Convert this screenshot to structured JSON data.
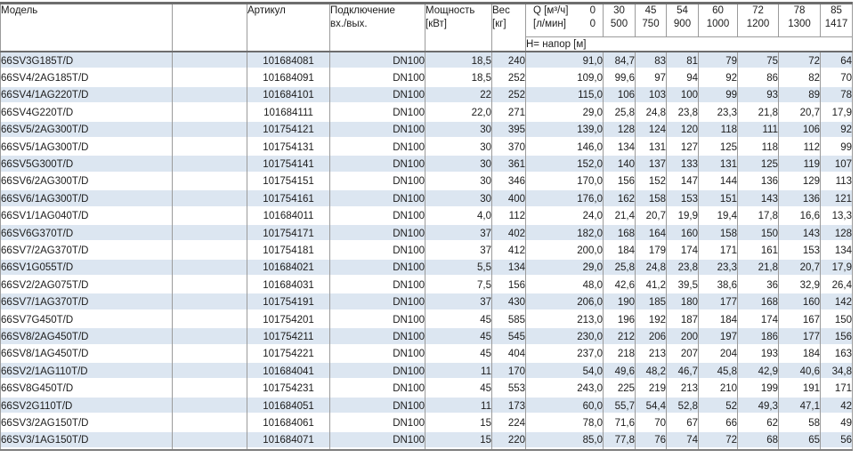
{
  "table": {
    "headers": {
      "model": "Модель",
      "empty_column": "",
      "article": "Артикул",
      "connection_l1": "Подключение",
      "connection_l2": "вх./вых.",
      "power_l1": "Мощность",
      "power_l2": "[кВт]",
      "weight_l1": "Вес",
      "weight_l2": "[кг]",
      "q_label_l1": "Q [м³/ч]",
      "q_zero_l1": "0",
      "q_label_l2": "[л/мин]",
      "q_zero_l2": "0",
      "head_row_label": "Н= напор [м]",
      "flow_columns": [
        {
          "m3h": "30",
          "lmin": "500"
        },
        {
          "m3h": "45",
          "lmin": "750"
        },
        {
          "m3h": "54",
          "lmin": "900"
        },
        {
          "m3h": "60",
          "lmin": "1000"
        },
        {
          "m3h": "72",
          "lmin": "1200"
        },
        {
          "m3h": "78",
          "lmin": "1300"
        },
        {
          "m3h": "85",
          "lmin": "1417"
        }
      ]
    },
    "rows": [
      {
        "model": "66SV3G185T/D",
        "article": "101684081",
        "connection": "DN100",
        "power": "18,5",
        "weight": "240",
        "h": [
          "91,0",
          "84,7",
          "83",
          "81",
          "79",
          "75",
          "72",
          "64"
        ]
      },
      {
        "model": "66SV4/2AG185T/D",
        "article": "101684091",
        "connection": "DN100",
        "power": "18,5",
        "weight": "252",
        "h": [
          "109,0",
          "99,6",
          "97",
          "94",
          "92",
          "86",
          "82",
          "70"
        ]
      },
      {
        "model": "66SV4/1AG220T/D",
        "article": "101684101",
        "connection": "DN100",
        "power": "22",
        "weight": "252",
        "h": [
          "115,0",
          "106",
          "103",
          "100",
          "99",
          "93",
          "89",
          "78"
        ]
      },
      {
        "model": "66SV4G220T/D",
        "article": "101684111",
        "connection": "DN100",
        "power": "22,0",
        "weight": "271",
        "h": [
          "29,0",
          "25,8",
          "24,8",
          "23,8",
          "23,3",
          "21,8",
          "20,7",
          "17,9"
        ]
      },
      {
        "model": "66SV5/2AG300T/D",
        "article": "101754121",
        "connection": "DN100",
        "power": "30",
        "weight": "395",
        "h": [
          "139,0",
          "128",
          "124",
          "120",
          "118",
          "111",
          "106",
          "92"
        ]
      },
      {
        "model": "66SV5/1AG300T/D",
        "article": "101754131",
        "connection": "DN100",
        "power": "30",
        "weight": "370",
        "h": [
          "146,0",
          "134",
          "131",
          "127",
          "125",
          "118",
          "112",
          "99"
        ]
      },
      {
        "model": "66SV5G300T/D",
        "article": "101754141",
        "connection": "DN100",
        "power": "30",
        "weight": "361",
        "h": [
          "152,0",
          "140",
          "137",
          "133",
          "131",
          "125",
          "119",
          "107"
        ]
      },
      {
        "model": "66SV6/2AG300T/D",
        "article": "101754151",
        "connection": "DN100",
        "power": "30",
        "weight": "346",
        "h": [
          "170,0",
          "156",
          "152",
          "147",
          "144",
          "136",
          "129",
          "113"
        ]
      },
      {
        "model": "66SV6/1AG300T/D",
        "article": "101754161",
        "connection": "DN100",
        "power": "30",
        "weight": "400",
        "h": [
          "176,0",
          "162",
          "158",
          "153",
          "151",
          "143",
          "136",
          "121"
        ]
      },
      {
        "model": "66SV1/1AG040T/D",
        "article": "101684011",
        "connection": "DN100",
        "power": "4,0",
        "weight": "112",
        "h": [
          "24,0",
          "21,4",
          "20,7",
          "19,9",
          "19,4",
          "17,8",
          "16,6",
          "13,3"
        ]
      },
      {
        "model": "66SV6G370T/D",
        "article": "101754171",
        "connection": "DN100",
        "power": "37",
        "weight": "402",
        "h": [
          "182,0",
          "168",
          "164",
          "160",
          "158",
          "150",
          "143",
          "128"
        ]
      },
      {
        "model": "66SV7/2AG370T/D",
        "article": "101754181",
        "connection": "DN100",
        "power": "37",
        "weight": "412",
        "h": [
          "200,0",
          "184",
          "179",
          "174",
          "171",
          "161",
          "153",
          "134"
        ]
      },
      {
        "model": "66SV1G055T/D",
        "article": "101684021",
        "connection": "DN100",
        "power": "5,5",
        "weight": "134",
        "h": [
          "29,0",
          "25,8",
          "24,8",
          "23,8",
          "23,3",
          "21,8",
          "20,7",
          "17,9"
        ]
      },
      {
        "model": "66SV2/2AG075T/D",
        "article": "101684031",
        "connection": "DN100",
        "power": "7,5",
        "weight": "156",
        "h": [
          "48,0",
          "42,6",
          "41,2",
          "39,5",
          "38,6",
          "36",
          "32,9",
          "26,4"
        ]
      },
      {
        "model": "66SV7/1AG370T/D",
        "article": "101754191",
        "connection": "DN100",
        "power": "37",
        "weight": "430",
        "h": [
          "206,0",
          "190",
          "185",
          "180",
          "177",
          "168",
          "160",
          "142"
        ]
      },
      {
        "model": "66SV7G450T/D",
        "article": "101754201",
        "connection": "DN100",
        "power": "45",
        "weight": "585",
        "h": [
          "213,0",
          "196",
          "192",
          "187",
          "184",
          "174",
          "167",
          "150"
        ]
      },
      {
        "model": "66SV8/2AG450T/D",
        "article": "101754211",
        "connection": "DN100",
        "power": "45",
        "weight": "545",
        "h": [
          "230,0",
          "212",
          "206",
          "200",
          "197",
          "186",
          "177",
          "156"
        ]
      },
      {
        "model": "66SV8/1AG450T/D",
        "article": "101754221",
        "connection": "DN100",
        "power": "45",
        "weight": "404",
        "h": [
          "237,0",
          "218",
          "213",
          "207",
          "204",
          "193",
          "184",
          "163"
        ]
      },
      {
        "model": "66SV2/1AG110T/D",
        "article": "101684041",
        "connection": "DN100",
        "power": "11",
        "weight": "170",
        "h": [
          "54,0",
          "49,6",
          "48,2",
          "46,7",
          "45,8",
          "42,9",
          "40,6",
          "34,8"
        ]
      },
      {
        "model": "66SV8G450T/D",
        "article": "101754231",
        "connection": "DN100",
        "power": "45",
        "weight": "553",
        "h": [
          "243,0",
          "225",
          "219",
          "213",
          "210",
          "199",
          "191",
          "171"
        ]
      },
      {
        "model": "66SV2G110T/D",
        "article": "101684051",
        "connection": "DN100",
        "power": "11",
        "weight": "173",
        "h": [
          "60,0",
          "55,7",
          "54,4",
          "52,8",
          "52",
          "49,3",
          "47,1",
          "42"
        ]
      },
      {
        "model": "66SV3/2AG150T/D",
        "article": "101684061",
        "connection": "DN100",
        "power": "15",
        "weight": "224",
        "h": [
          "78,0",
          "71,6",
          "70",
          "67",
          "66",
          "62",
          "58",
          "49"
        ]
      },
      {
        "model": "66SV3/1AG150T/D",
        "article": "101684071",
        "connection": "DN100",
        "power": "15",
        "weight": "220",
        "h": [
          "85,0",
          "77,8",
          "76",
          "74",
          "72",
          "68",
          "65",
          "56"
        ]
      }
    ]
  },
  "colors": {
    "row_stripe": "#dce6f1",
    "grid_line": "#9b9b9b",
    "heavy_line": "#6d6d6d",
    "text": "#1c1c1c",
    "background": "#ffffff"
  }
}
